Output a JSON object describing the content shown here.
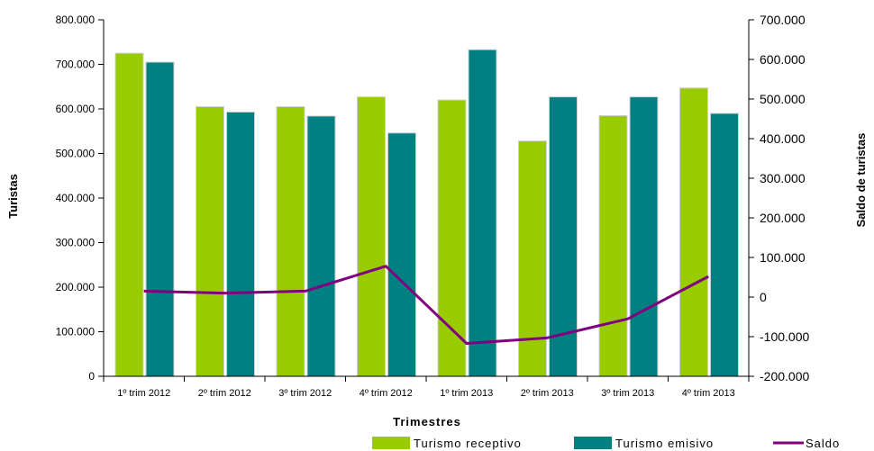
{
  "chart_data": {
    "type": "bar",
    "categories": [
      "1º trim 2012",
      "2º trim 2012",
      "3º trim 2012",
      "4º trim 2012",
      "1º trim 2013",
      "2º trim 2013",
      "3º trim 2013",
      "4º trim 2013"
    ],
    "series": [
      {
        "name": "Turismo receptivo",
        "type": "bar",
        "axis": "left",
        "color": "#99cc00",
        "values": [
          725000,
          605000,
          605000,
          627000,
          620000,
          528000,
          585000,
          647000
        ]
      },
      {
        "name": "Turismo emisivo",
        "type": "bar",
        "axis": "left",
        "color": "#008080",
        "values": [
          705000,
          593000,
          584000,
          546000,
          733000,
          627000,
          627000,
          590000
        ]
      },
      {
        "name": "Saldo",
        "type": "line",
        "axis": "right",
        "color": "#800080",
        "values": [
          15000,
          10000,
          15000,
          78000,
          -117000,
          -103000,
          -55000,
          52000
        ]
      }
    ],
    "xlabel": "Trimestres",
    "ylabel": "Turistas",
    "y2label": "Saldo de turistas",
    "ylim": [
      0,
      800000
    ],
    "y2lim": [
      -200000,
      700000
    ],
    "yticks": [
      "0",
      "100.000",
      "200.000",
      "300.000",
      "400.000",
      "500.000",
      "600.000",
      "700.000",
      "800.000"
    ],
    "y2ticks": [
      "-200.000",
      "-100.000",
      "0",
      "100.000",
      "200.000",
      "300.000",
      "400.000",
      "500.000",
      "600.000",
      "700.000"
    ],
    "grid": false,
    "legend": "bottom"
  }
}
